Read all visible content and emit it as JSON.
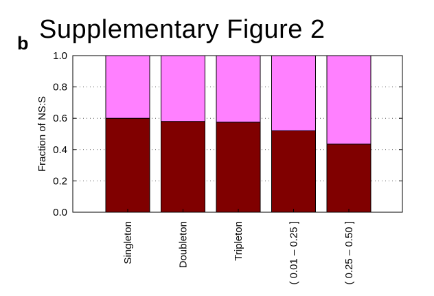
{
  "figure": {
    "title": "Supplementary Figure 2",
    "panel_label": "b"
  },
  "chart_data": {
    "type": "bar",
    "stacked": true,
    "categories": [
      "Singleton",
      "Doubleton",
      "Tripleton",
      "( 0.01 – 0.25 ]",
      "( 0.25 – 0.50 ]"
    ],
    "series": [
      {
        "values": [
          0.6,
          0.58,
          0.575,
          0.52,
          0.435
        ],
        "color": "#800000"
      },
      {
        "values": [
          0.4,
          0.42,
          0.425,
          0.48,
          0.565
        ],
        "color": "#ff80ff"
      }
    ],
    "ylabel": "Fraction of NS:S",
    "xlabel": "",
    "ylim": [
      0,
      1.0
    ],
    "yticks": [
      0.0,
      0.2,
      0.4,
      0.6,
      0.8,
      1.0
    ],
    "ytick_labels": [
      "0.0",
      "0.2",
      "0.4",
      "0.6",
      "0.8",
      "1.0"
    ],
    "grid": "dotted horizontal",
    "legend": "none"
  }
}
